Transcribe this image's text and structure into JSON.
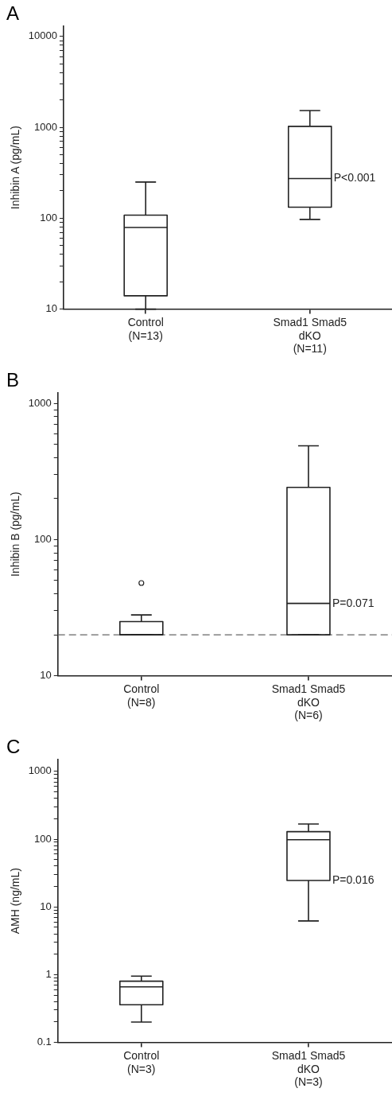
{
  "chart_data": [
    {
      "type": "box",
      "title": "A",
      "ylabel": "Inhibin A (pg/mL)",
      "categories": [
        "Control\n(N=13)",
        "Smad1 Smad5\ndKO\n(N=11)"
      ],
      "log": "y",
      "ylim": [
        10,
        13000
      ],
      "yticks": [
        10,
        {
          "value": 20,
          "label": null
        },
        {
          "value": 30,
          "label": null
        },
        {
          "value": 40,
          "label": null
        },
        {
          "value": 50,
          "label": null
        },
        {
          "value": 60,
          "label": null
        },
        {
          "value": 70,
          "label": null
        },
        {
          "value": 80,
          "label": null
        },
        {
          "value": 90,
          "label": null
        },
        100,
        {
          "value": 200,
          "label": null
        },
        {
          "value": 300,
          "label": null
        },
        {
          "value": 400,
          "label": null
        },
        {
          "value": 500,
          "label": null
        },
        {
          "value": 600,
          "label": null
        },
        {
          "value": 700,
          "label": null
        },
        {
          "value": 800,
          "label": null
        },
        {
          "value": 900,
          "label": null
        },
        1000,
        {
          "value": 2000,
          "label": null
        },
        {
          "value": 3000,
          "label": null
        },
        {
          "value": 4000,
          "label": null
        },
        {
          "value": 5000,
          "label": null
        },
        {
          "value": 6000,
          "label": null
        },
        {
          "value": 7000,
          "label": null
        },
        {
          "value": 8000,
          "label": null
        },
        {
          "value": 9000,
          "label": null
        },
        10000
      ],
      "boxes": [
        {
          "low": 10,
          "q1": 14,
          "median": 79,
          "q3": 108,
          "high": 250
        },
        {
          "low": 97,
          "q1": 132,
          "median": 273,
          "q3": 1025,
          "high": 1530
        }
      ],
      "annotations": [
        {
          "text": "P<0.001",
          "x": "Smad1 Smad5\ndKO\n(N=11)",
          "y": 273
        }
      ]
    },
    {
      "type": "box",
      "title": "B",
      "ylabel": "Inhibin B (pg/mL)",
      "categories": [
        "Control\n(N=8)",
        "Smad1 Smad5\ndKO\n(N=6)"
      ],
      "log": "y",
      "ylim": [
        10,
        1200
      ],
      "yticks": [
        10,
        {
          "value": 20,
          "label": null
        },
        {
          "value": 30,
          "label": null
        },
        {
          "value": 40,
          "label": null
        },
        {
          "value": 50,
          "label": null
        },
        {
          "value": 60,
          "label": null
        },
        {
          "value": 70,
          "label": null
        },
        {
          "value": 80,
          "label": null
        },
        {
          "value": 90,
          "label": null
        },
        100,
        {
          "value": 200,
          "label": null
        },
        {
          "value": 300,
          "label": null
        },
        {
          "value": 400,
          "label": null
        },
        {
          "value": 500,
          "label": null
        },
        {
          "value": 600,
          "label": null
        },
        {
          "value": 700,
          "label": null
        },
        {
          "value": 800,
          "label": null
        },
        {
          "value": 900,
          "label": null
        },
        1000
      ],
      "boxes": [
        {
          "low": 20,
          "q1": 20,
          "median": 20,
          "q3": 25,
          "high": 28,
          "outliers": [
            48
          ]
        },
        {
          "low": 20,
          "q1": 20,
          "median": 34,
          "q3": 242,
          "high": 489
        }
      ],
      "ref_lines": [
        {
          "axis": "y",
          "value": 20,
          "color": "#666666",
          "line_style": "dashed"
        }
      ],
      "annotations": [
        {
          "text": "P=0.071",
          "x": "Smad1 Smad5\ndKO\n(N=6)",
          "y": 34
        }
      ]
    },
    {
      "type": "box",
      "title": "C",
      "ylabel": "AMH (ng/mL)",
      "categories": [
        "Control\n(N=3)",
        "Smad1 Smad5\ndKO\n(N=3)"
      ],
      "log": "y",
      "ylim": [
        0.1,
        1500
      ],
      "yticks": [
        0.1,
        {
          "value": 0.2,
          "label": null
        },
        {
          "value": 0.3,
          "label": null
        },
        {
          "value": 0.4,
          "label": null
        },
        {
          "value": 0.5,
          "label": null
        },
        {
          "value": 0.6,
          "label": null
        },
        {
          "value": 0.7,
          "label": null
        },
        {
          "value": 0.8,
          "label": null
        },
        {
          "value": 0.9,
          "label": null
        },
        1,
        {
          "value": 2,
          "label": null
        },
        {
          "value": 3,
          "label": null
        },
        {
          "value": 4,
          "label": null
        },
        {
          "value": 5,
          "label": null
        },
        {
          "value": 6,
          "label": null
        },
        {
          "value": 7,
          "label": null
        },
        {
          "value": 8,
          "label": null
        },
        {
          "value": 9,
          "label": null
        },
        10,
        {
          "value": 20,
          "label": null
        },
        {
          "value": 30,
          "label": null
        },
        {
          "value": 40,
          "label": null
        },
        {
          "value": 50,
          "label": null
        },
        {
          "value": 60,
          "label": null
        },
        {
          "value": 70,
          "label": null
        },
        {
          "value": 80,
          "label": null
        },
        {
          "value": 90,
          "label": null
        },
        100,
        {
          "value": 200,
          "label": null
        },
        {
          "value": 300,
          "label": null
        },
        {
          "value": 400,
          "label": null
        },
        {
          "value": 500,
          "label": null
        },
        {
          "value": 600,
          "label": null
        },
        {
          "value": 700,
          "label": null
        },
        {
          "value": 800,
          "label": null
        },
        {
          "value": 900,
          "label": null
        },
        1000
      ],
      "boxes": [
        {
          "low": 0.2,
          "q1": 0.36,
          "median": 0.66,
          "q3": 0.8,
          "high": 0.95
        },
        {
          "low": 6.2,
          "q1": 24.5,
          "median": 98,
          "q3": 129,
          "high": 167
        }
      ],
      "annotations": [
        {
          "text": "P=0.016",
          "x": "Smad1 Smad5\ndKO\n(N=3)",
          "y": 24.5
        }
      ]
    }
  ]
}
